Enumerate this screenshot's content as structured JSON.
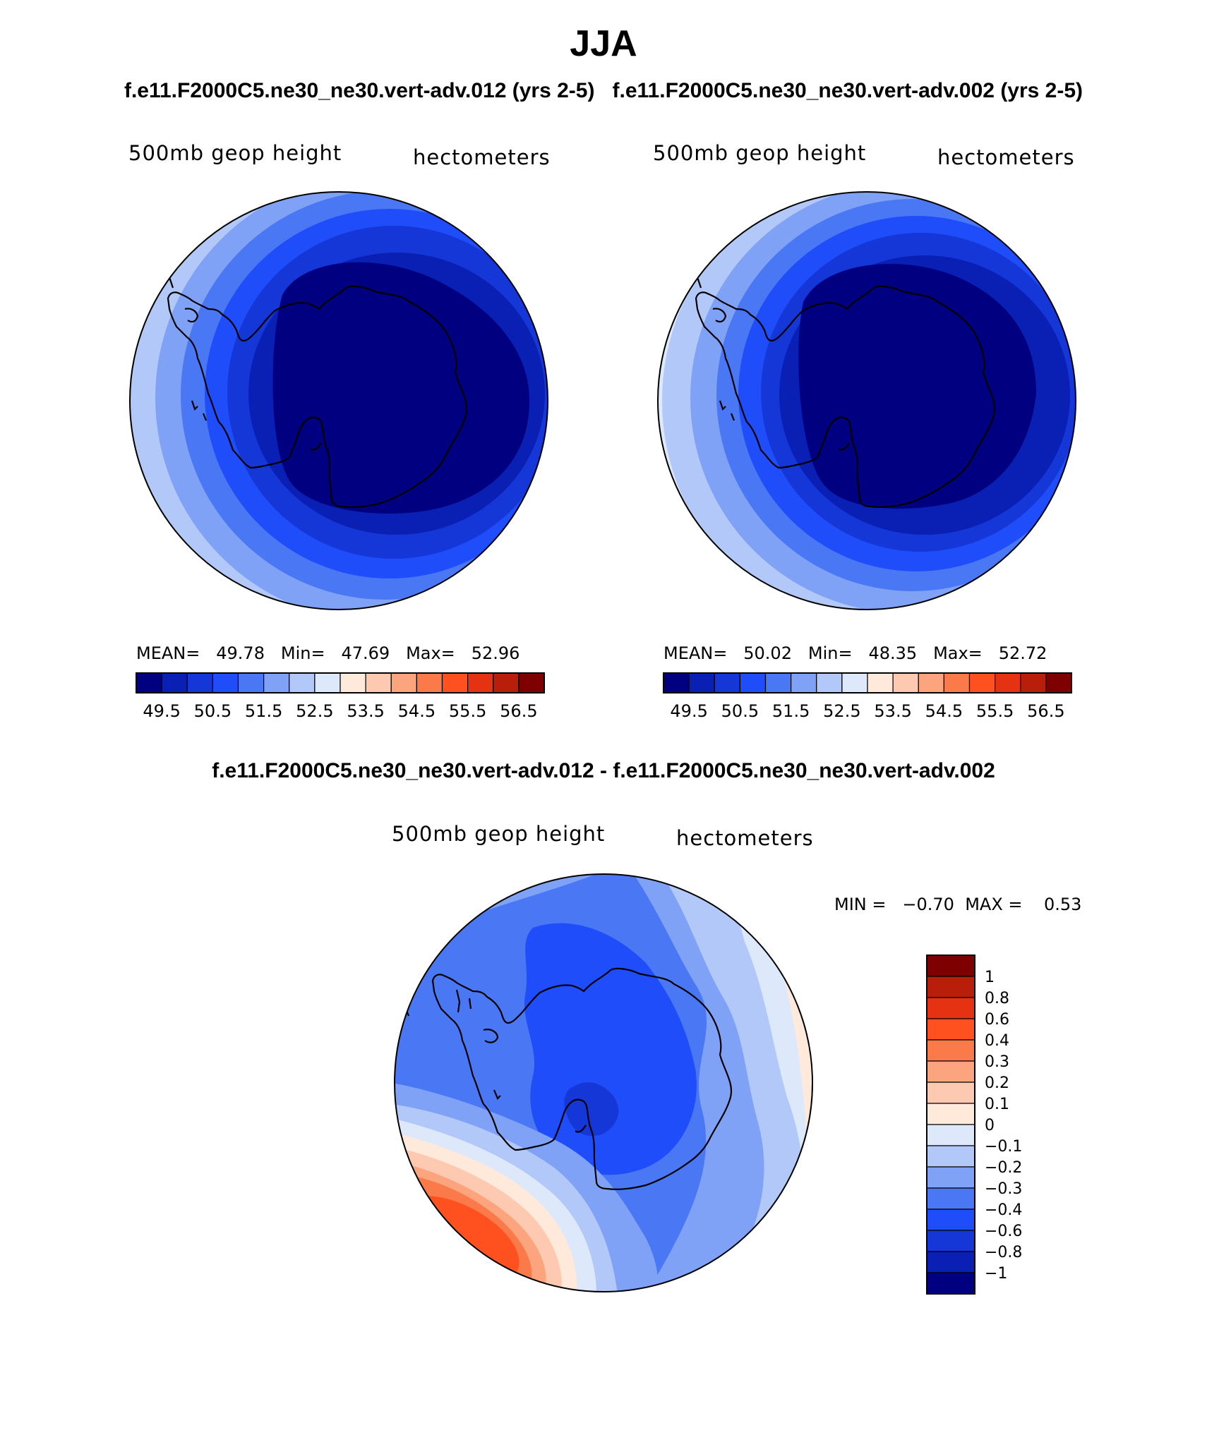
{
  "title": "JJA",
  "subtitle_left": "f.e11.F2000C5.ne30_ne30.vert-adv.012 (yrs 2-5)",
  "subtitle_right": "f.e11.F2000C5.ne30_ne30.vert-adv.002 (yrs 2-5)",
  "diff_title": "f.e11.F2000C5.ne30_ne30.vert-adv.012 - f.e11.F2000C5.ne30_ne30.vert-adv.002",
  "panels": [
    {
      "variable": "500mb geop height",
      "units": "hectometers",
      "mean_label": "MEAN=",
      "mean": "49.78",
      "min_label": "Min=",
      "min": "47.69",
      "max_label": "Max=",
      "max": "52.96"
    },
    {
      "variable": "500mb geop height",
      "units": "hectometers",
      "mean_label": "MEAN=",
      "mean": "50.02",
      "min_label": "Min=",
      "min": "48.35",
      "max_label": "Max=",
      "max": "52.72"
    }
  ],
  "diff_panel": {
    "variable": "500mb geop height",
    "units": "hectometers",
    "min_label": "MIN =",
    "min": "−0.70",
    "max_label": "MAX =",
    "max": "0.53"
  },
  "colorbar_main": {
    "colors": [
      "#000080",
      "#0A1FB4",
      "#1537D8",
      "#1F4DFA",
      "#4A78F5",
      "#7FA2F7",
      "#B2C8F8",
      "#DDE9FB",
      "#FFE9DA",
      "#FDCAB1",
      "#FCA47E",
      "#FA7A4A",
      "#FF5020",
      "#E53212",
      "#B91E0A",
      "#7E0000"
    ],
    "labels": [
      "49.5",
      "50.5",
      "51.5",
      "52.5",
      "53.5",
      "54.5",
      "55.5",
      "56.5"
    ]
  },
  "colorbar_diff": {
    "colors": [
      "#000080",
      "#0A1FB4",
      "#1537D8",
      "#1F4DFA",
      "#4A78F5",
      "#7FA2F7",
      "#B2C8F8",
      "#DDE9FB",
      "#FFE9DA",
      "#FDCAB1",
      "#FCA47E",
      "#FA7A4A",
      "#FF5020",
      "#E53212",
      "#B91E0A",
      "#7E0000"
    ],
    "labels": [
      "1",
      "0.8",
      "0.6",
      "0.4",
      "0.3",
      "0.2",
      "0.1",
      "0",
      "−0.1",
      "−0.2",
      "−0.3",
      "−0.4",
      "−0.6",
      "−0.8",
      "−1"
    ]
  }
}
